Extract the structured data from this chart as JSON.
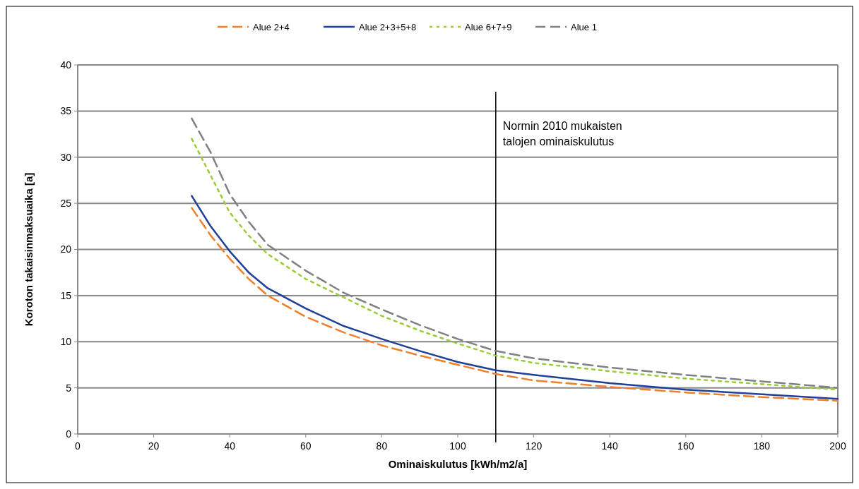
{
  "chart_data": {
    "type": "line",
    "xlabel": "Ominaiskulutus [kWh/m2/a]",
    "ylabel": "Koroton takaisinmaksuaika [a]",
    "xlim": [
      0,
      200
    ],
    "xticks": [
      0,
      20,
      40,
      60,
      80,
      100,
      120,
      140,
      160,
      180,
      200
    ],
    "ylim": [
      0,
      40
    ],
    "yticks": [
      0,
      5,
      10,
      15,
      20,
      25,
      30,
      35,
      40
    ],
    "grid": "y",
    "legend": "top",
    "marker": "none",
    "x": [
      30,
      35,
      40,
      45,
      50,
      60,
      70,
      80,
      90,
      100,
      110,
      120,
      140,
      160,
      180,
      200
    ],
    "series": [
      {
        "name": "Alue 2+4",
        "color": "#f07f2a",
        "line_style": "dashed",
        "values": [
          24.5,
          21.5,
          19,
          16.8,
          15,
          12.7,
          11,
          9.6,
          8.5,
          7.5,
          6.5,
          5.8,
          5.1,
          4.5,
          4.0,
          3.6
        ]
      },
      {
        "name": "Alue 2+3+5+8",
        "color": "#1f3f99",
        "line_style": "solid",
        "values": [
          25.8,
          22.5,
          19.8,
          17.5,
          15.8,
          13.6,
          11.7,
          10.3,
          9,
          7.8,
          6.9,
          6.4,
          5.5,
          4.8,
          4.3,
          3.8
        ]
      },
      {
        "name": "Alue 6+7+9",
        "color": "#99cc33",
        "line_style": "dotted",
        "values": [
          32,
          28,
          24,
          21.5,
          19.5,
          16.8,
          14.8,
          12.8,
          11.2,
          9.8,
          8.5,
          7.7,
          6.8,
          6.0,
          5.4,
          4.8
        ]
      },
      {
        "name": "Alue 1",
        "color": "#808080",
        "line_style": "dashed",
        "values": [
          34.2,
          30.5,
          26,
          23,
          20.5,
          17.7,
          15.3,
          13.5,
          11.8,
          10.3,
          9.0,
          8.2,
          7.2,
          6.4,
          5.7,
          5.0
        ]
      }
    ],
    "ref_lines": [
      {
        "axis": "x",
        "value": 110,
        "label": "Normin 2010 mukaisten talojen ominaiskulutus",
        "color": "#000000"
      }
    ]
  }
}
